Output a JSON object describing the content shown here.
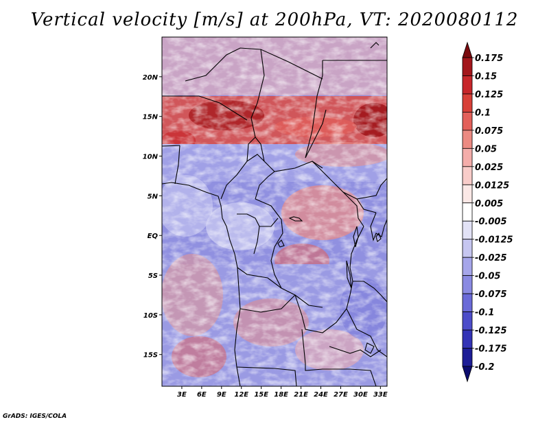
{
  "title": "Vertical velocity [m/s] at 200hPa, VT: 2020080112",
  "footer": "GrADS: IGES/COLA",
  "map": {
    "lat_ticks": [
      "20N",
      "15N",
      "10N",
      "5N",
      "EQ",
      "5S",
      "10S",
      "15S"
    ],
    "lat_values": [
      20,
      15,
      10,
      5,
      0,
      -5,
      -10,
      -15
    ],
    "lon_ticks": [
      "3E",
      "6E",
      "9E",
      "12E",
      "15E",
      "18E",
      "21E",
      "24E",
      "27E",
      "30E",
      "33E"
    ],
    "lon_values": [
      3,
      6,
      9,
      12,
      15,
      18,
      21,
      24,
      27,
      30,
      33
    ],
    "lon_range": [
      0,
      34
    ],
    "lat_range": [
      -19,
      25
    ]
  },
  "colorbar": {
    "labels": [
      "0.175",
      "0.15",
      "0.125",
      "0.1",
      "0.075",
      "0.05",
      "0.025",
      "0.0125",
      "0.005",
      "-0.005",
      "-0.0125",
      "-0.025",
      "-0.05",
      "-0.075",
      "-0.1",
      "-0.125",
      "-0.175",
      "-0.2"
    ],
    "colors": [
      "#7a0a0e",
      "#a3161b",
      "#c7262a",
      "#d84038",
      "#e3605a",
      "#ec8a82",
      "#f4adaa",
      "#f8ccc9",
      "#fbe8e6",
      "#ffffff",
      "#e2e2f6",
      "#c6c6f0",
      "#a6a6ea",
      "#8a8ae2",
      "#6a6ad8",
      "#4d4dca",
      "#3333b6",
      "#1d1d96",
      "#0c0c6e"
    ]
  }
}
